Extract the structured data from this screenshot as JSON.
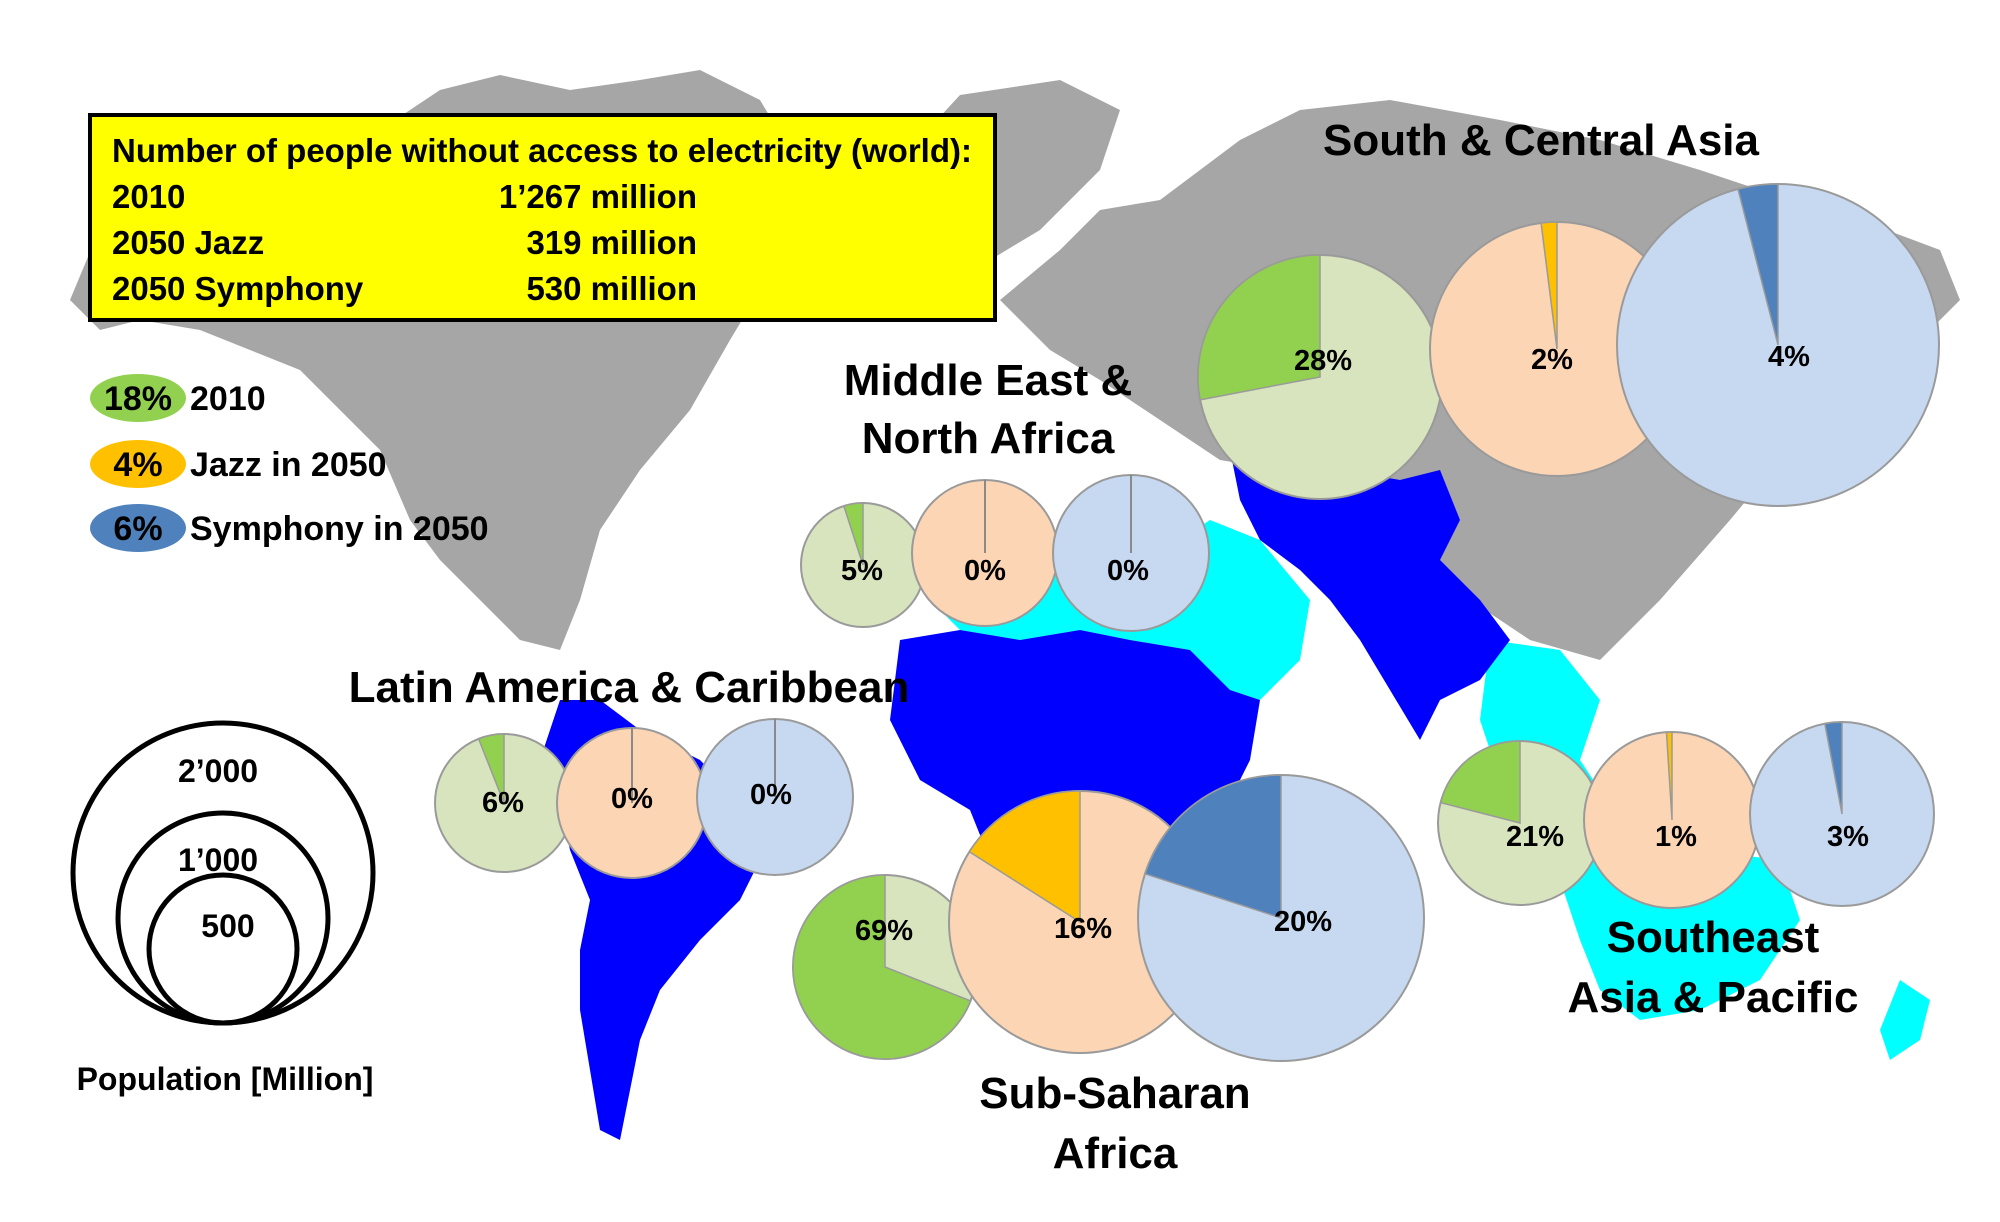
{
  "info_box": {
    "title": "Number of people without access to electricity (world):",
    "rows": [
      {
        "label": "2010",
        "value": "1’267 million"
      },
      {
        "label": "2050 Jazz",
        "value": "319 million"
      },
      {
        "label": "2050 Symphony",
        "value": "530 million"
      }
    ]
  },
  "legend": [
    {
      "badge": "18%",
      "label": "2010",
      "color": "#92D050"
    },
    {
      "badge": "4%",
      "label": "Jazz in 2050",
      "color": "#FFC000"
    },
    {
      "badge": "6%",
      "label": "Symphony in 2050",
      "color": "#4F81BD"
    }
  ],
  "size_legend": {
    "labels": [
      "2’000",
      "1’000",
      "500"
    ],
    "title": "Population [Million]"
  },
  "colors": {
    "map_land": "#A6A6A6",
    "map_highlight": "#0000FF",
    "map_cyan": "#00FFFF",
    "box_fill": "#FFFF00",
    "scenario_2010": {
      "fill": "#92D050",
      "bg": "#D7E4BD"
    },
    "scenario_jazz": {
      "fill": "#FFC000",
      "bg": "#FCD5B5"
    },
    "scenario_symphony": {
      "fill": "#4F81BD",
      "bg": "#C6D9F1"
    }
  },
  "chart_data": {
    "type": "pie",
    "series": [
      {
        "name": "2010",
        "scenario": "scenario_2010"
      },
      {
        "name": "Jazz in 2050",
        "scenario": "scenario_jazz"
      },
      {
        "name": "Symphony in 2050",
        "scenario": "scenario_symphony"
      }
    ],
    "regions": [
      {
        "name": "Middle East & North Africa",
        "title_lines": [
          "Middle East &",
          "North Africa"
        ],
        "values": [
          5,
          0,
          0
        ],
        "labels": [
          "5%",
          "0%",
          "0%"
        ]
      },
      {
        "name": "South & Central Asia",
        "title_lines": [
          "South & Central Asia"
        ],
        "values": [
          28,
          2,
          4
        ],
        "labels": [
          "28%",
          "2%",
          "4%"
        ]
      },
      {
        "name": "Latin America & Caribbean",
        "title_lines": [
          "Latin America &  Caribbean"
        ],
        "values": [
          6,
          0,
          0
        ],
        "labels": [
          "6%",
          "0%",
          "0%"
        ]
      },
      {
        "name": "Sub-Saharan Africa",
        "title_lines": [
          "Sub-Saharan",
          "Africa"
        ],
        "values": [
          69,
          16,
          20
        ],
        "labels": [
          "69%",
          "16%",
          "20%"
        ]
      },
      {
        "name": "Southeast Asia & Pacific",
        "title_lines": [
          "Southeast",
          "Asia & Pacific"
        ],
        "values": [
          21,
          1,
          3
        ],
        "labels": [
          "21%",
          "1%",
          "3%"
        ]
      }
    ]
  }
}
